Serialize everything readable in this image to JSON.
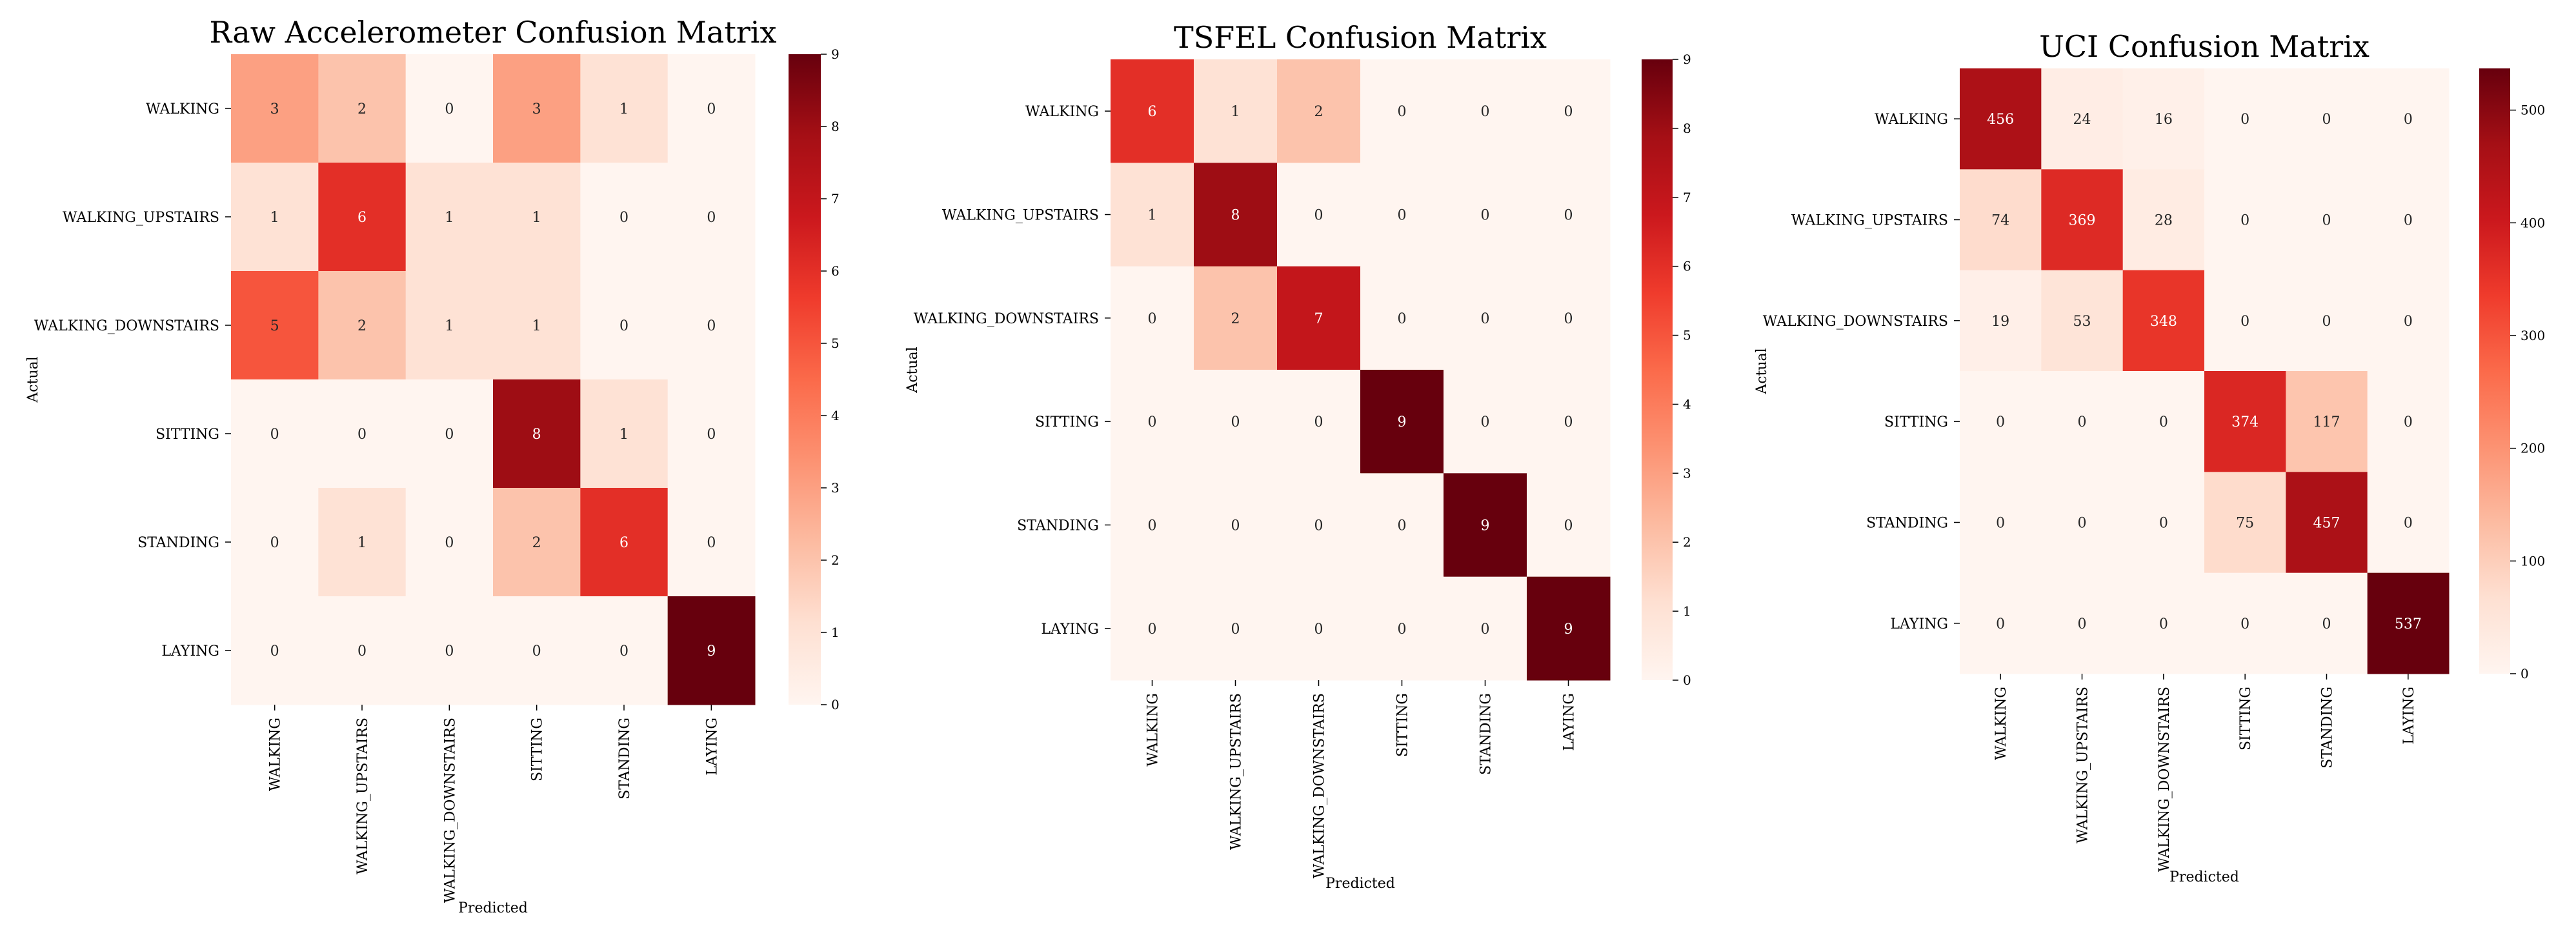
{
  "chart_data": [
    {
      "type": "heatmap",
      "title": "Raw Accelerometer Confusion Matrix",
      "xlabel": "Predicted",
      "ylabel": "Actual",
      "categories": [
        "WALKING",
        "WALKING_UPSTAIRS",
        "WALKING_DOWNSTAIRS",
        "SITTING",
        "STANDING",
        "LAYING"
      ],
      "values": [
        [
          3,
          2,
          0,
          3,
          1,
          0
        ],
        [
          1,
          6,
          1,
          1,
          0,
          0
        ],
        [
          5,
          2,
          1,
          1,
          0,
          0
        ],
        [
          0,
          0,
          0,
          8,
          1,
          0
        ],
        [
          0,
          1,
          0,
          2,
          6,
          0
        ],
        [
          0,
          0,
          0,
          0,
          0,
          9
        ]
      ],
      "colorbar_range": [
        0,
        9
      ],
      "colorbar_ticks": [
        0,
        1,
        2,
        3,
        4,
        5,
        6,
        7,
        8,
        9
      ],
      "colormap": "Reds"
    },
    {
      "type": "heatmap",
      "title": "TSFEL Confusion Matrix",
      "xlabel": "Predicted",
      "ylabel": "Actual",
      "categories": [
        "WALKING",
        "WALKING_UPSTAIRS",
        "WALKING_DOWNSTAIRS",
        "SITTING",
        "STANDING",
        "LAYING"
      ],
      "values": [
        [
          6,
          1,
          2,
          0,
          0,
          0
        ],
        [
          1,
          8,
          0,
          0,
          0,
          0
        ],
        [
          0,
          2,
          7,
          0,
          0,
          0
        ],
        [
          0,
          0,
          0,
          9,
          0,
          0
        ],
        [
          0,
          0,
          0,
          0,
          9,
          0
        ],
        [
          0,
          0,
          0,
          0,
          0,
          9
        ]
      ],
      "colorbar_range": [
        0,
        9
      ],
      "colorbar_ticks": [
        0,
        1,
        2,
        3,
        4,
        5,
        6,
        7,
        8,
        9
      ],
      "colormap": "Reds"
    },
    {
      "type": "heatmap",
      "title": "UCI Confusion Matrix",
      "xlabel": "Predicted",
      "ylabel": "Actual",
      "categories": [
        "WALKING",
        "WALKING_UPSTAIRS",
        "WALKING_DOWNSTAIRS",
        "SITTING",
        "STANDING",
        "LAYING"
      ],
      "values": [
        [
          456,
          24,
          16,
          0,
          0,
          0
        ],
        [
          74,
          369,
          28,
          0,
          0,
          0
        ],
        [
          19,
          53,
          348,
          0,
          0,
          0
        ],
        [
          0,
          0,
          0,
          374,
          117,
          0
        ],
        [
          0,
          0,
          0,
          75,
          457,
          0
        ],
        [
          0,
          0,
          0,
          0,
          0,
          537
        ]
      ],
      "colorbar_range": [
        0,
        537
      ],
      "colorbar_ticks": [
        0,
        100,
        200,
        300,
        400,
        500
      ],
      "colormap": "Reds"
    }
  ]
}
